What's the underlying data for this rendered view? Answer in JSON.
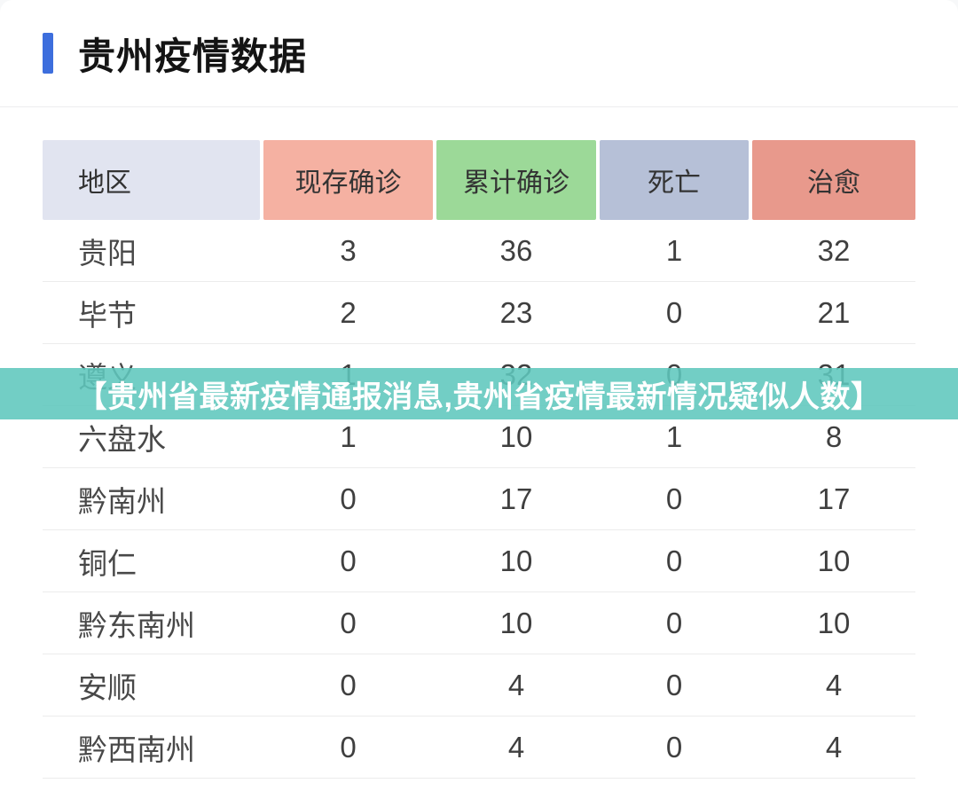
{
  "page": {
    "title": "贵州疫情数据",
    "accent_color": "#3d6edd",
    "background_color": "#ffffff"
  },
  "banner": {
    "text": "【贵州省最新疫情通报消息,贵州省疫情最新情况疑似人数】",
    "bg_color": "#5fc7bd",
    "text_color": "#ffffff"
  },
  "table": {
    "columns": [
      {
        "label": "地区",
        "bg": "#e1e4f0"
      },
      {
        "label": "现存确诊",
        "bg": "#f5b1a2"
      },
      {
        "label": "累计确诊",
        "bg": "#9cd998"
      },
      {
        "label": "死亡",
        "bg": "#b6c0d7"
      },
      {
        "label": "治愈",
        "bg": "#e8998c"
      }
    ],
    "rows": [
      {
        "region": "贵阳",
        "values": [
          "3",
          "36",
          "1",
          "32"
        ]
      },
      {
        "region": "毕节",
        "values": [
          "2",
          "23",
          "0",
          "21"
        ]
      },
      {
        "region": "遵义",
        "values": [
          "1",
          "32",
          "0",
          "31"
        ]
      },
      {
        "region": "六盘水",
        "values": [
          "1",
          "10",
          "1",
          "8"
        ]
      },
      {
        "region": "黔南州",
        "values": [
          "0",
          "17",
          "0",
          "17"
        ]
      },
      {
        "region": "铜仁",
        "values": [
          "0",
          "10",
          "0",
          "10"
        ]
      },
      {
        "region": "黔东南州",
        "values": [
          "0",
          "10",
          "0",
          "10"
        ]
      },
      {
        "region": "安顺",
        "values": [
          "0",
          "4",
          "0",
          "4"
        ]
      },
      {
        "region": "黔西南州",
        "values": [
          "0",
          "4",
          "0",
          "4"
        ]
      }
    ]
  }
}
